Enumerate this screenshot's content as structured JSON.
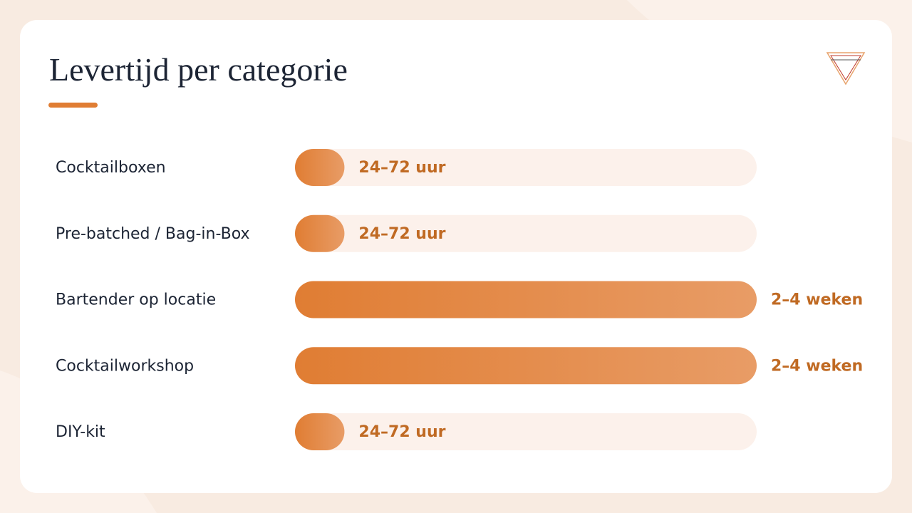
{
  "chart_data": {
    "type": "bar",
    "orientation": "horizontal",
    "title": "Levertijd per categorie",
    "categories": [
      "Cocktailboxen",
      "Pre-batched / Bag-in-Box",
      "Bartender op locatie",
      "Cocktailworkshop",
      "DIY-kit"
    ],
    "values": [
      72,
      72,
      672,
      672,
      72
    ],
    "value_labels": [
      "24–72 uur",
      "24–72 uur",
      "2–4 weken",
      "2–4 weken",
      "24–72 uur"
    ],
    "xlim": [
      0,
      672
    ],
    "color": "#e07d33"
  }
}
